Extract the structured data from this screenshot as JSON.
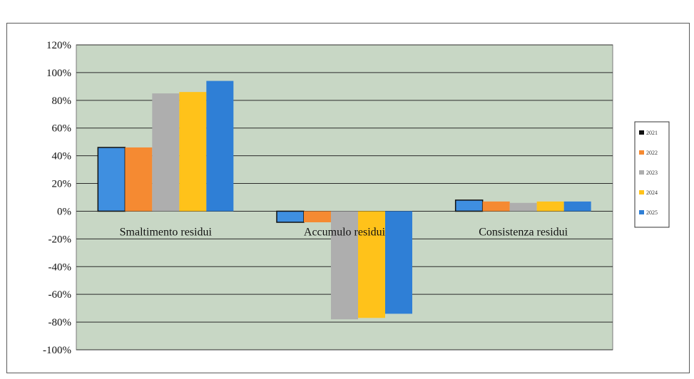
{
  "chart_data": {
    "type": "bar",
    "categories": [
      "Smaltimento residui",
      "Accumulo residui",
      "Consistenza residui"
    ],
    "series": [
      {
        "name": "2021",
        "color": "#3f8fe0",
        "values": [
          46,
          -8,
          8
        ]
      },
      {
        "name": "2022",
        "color": "#f58a32",
        "values": [
          46,
          -8,
          7
        ]
      },
      {
        "name": "2023",
        "color": "#aeaeae",
        "values": [
          85,
          -78,
          6
        ]
      },
      {
        "name": "2024",
        "color": "#ffc21a",
        "values": [
          86,
          -77,
          7
        ]
      },
      {
        "name": "2025",
        "color": "#2f7fd6",
        "values": [
          94,
          -74,
          7
        ]
      }
    ],
    "ylim": [
      -100,
      120
    ],
    "yticks": [
      120,
      100,
      80,
      60,
      40,
      20,
      0,
      -20,
      -40,
      -60,
      -80,
      -100
    ],
    "ytick_suffix": "%",
    "grid": true,
    "plot_background": "#c8d7c5",
    "legend_position": "right"
  }
}
